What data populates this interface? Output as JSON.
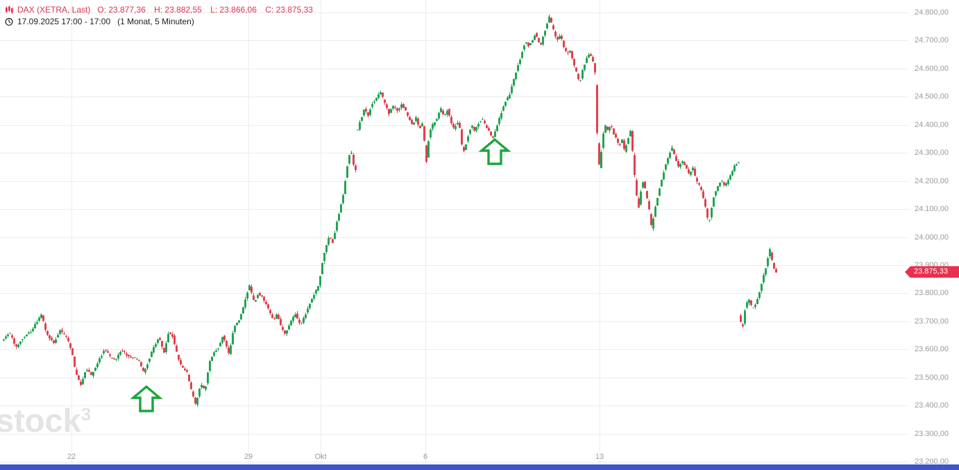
{
  "header": {
    "symbol": "DAX (XETRA, Last)",
    "ohlc_o": "O: 23.877,36",
    "ohlc_h": "H: 23.882,55",
    "ohlc_l": "L: 23.866,06",
    "ohlc_c": "C: 23.875,33",
    "period": "17.09.2025 17:00 - 17:00",
    "interval": "(1 Monat, 5 Minuten)"
  },
  "watermark": {
    "text": "stock",
    "sup": "3"
  },
  "chart_data": {
    "type": "candlestick",
    "title": "DAX (XETRA, Last)",
    "xlabel": "",
    "ylabel": "",
    "range_label": "1 Monat",
    "interval_label": "5 Minuten",
    "ylim": [
      23200,
      24800
    ],
    "grid": true,
    "open": 23877.36,
    "high": 23882.55,
    "low": 23866.06,
    "close": 23875.33,
    "last_price": {
      "value": 23875.33,
      "label": "23.875,33"
    },
    "y_ticks": [
      {
        "value": 24800,
        "label": "24.800,00"
      },
      {
        "value": 24700,
        "label": "24.700,00"
      },
      {
        "value": 24600,
        "label": "24.600,00"
      },
      {
        "value": 24500,
        "label": "24.500,00"
      },
      {
        "value": 24400,
        "label": "24.400,00"
      },
      {
        "value": 24300,
        "label": "24.300,00"
      },
      {
        "value": 24200,
        "label": "24.200,00"
      },
      {
        "value": 24100,
        "label": "24.100,00"
      },
      {
        "value": 24000,
        "label": "24.000,00"
      },
      {
        "value": 23900,
        "label": "23.900,00"
      },
      {
        "value": 23800,
        "label": "23.800,00"
      },
      {
        "value": 23700,
        "label": "23.700,00"
      },
      {
        "value": 23600,
        "label": "23.600,00"
      },
      {
        "value": 23500,
        "label": "23.500,00"
      },
      {
        "value": 23400,
        "label": "23.400,00"
      },
      {
        "value": 23300,
        "label": "23.300,00"
      },
      {
        "value": 23200,
        "label": "23.200,00"
      }
    ],
    "x_ticks": [
      {
        "label": "22",
        "x": 103
      },
      {
        "label": "29",
        "x": 358
      },
      {
        "label": "Okt",
        "x": 462
      },
      {
        "label": "6",
        "x": 613
      },
      {
        "label": "13",
        "x": 864
      }
    ],
    "colors": {
      "up": "#22a453",
      "down": "#e0414e",
      "grid": "#ececec",
      "axis_text": "#9a9a9a",
      "last_price_bg": "#e9304e",
      "scrollbar": "#3e55cb",
      "arrow": "#1ba53a",
      "header_red": "#e0304c"
    },
    "annotations": {
      "arrows_up": [
        {
          "x": 211,
          "y_tip": 556
        },
        {
          "x": 713,
          "y_tip": 200
        }
      ]
    },
    "gaps": [
      514.5,
      1065.5
    ],
    "price_path": [
      [
        5,
        23630
      ],
      [
        14,
        23662
      ],
      [
        24,
        23608
      ],
      [
        34,
        23640
      ],
      [
        47,
        23668
      ],
      [
        60,
        23725
      ],
      [
        68,
        23655
      ],
      [
        78,
        23622
      ],
      [
        88,
        23668
      ],
      [
        97,
        23640
      ],
      [
        104,
        23598
      ],
      [
        109,
        23528
      ],
      [
        117,
        23472
      ],
      [
        125,
        23532
      ],
      [
        133,
        23505
      ],
      [
        143,
        23562
      ],
      [
        152,
        23600
      ],
      [
        160,
        23572
      ],
      [
        168,
        23562
      ],
      [
        176,
        23600
      ],
      [
        185,
        23575
      ],
      [
        193,
        23572
      ],
      [
        201,
        23558
      ],
      [
        208,
        23518
      ],
      [
        215,
        23560
      ],
      [
        223,
        23612
      ],
      [
        230,
        23642
      ],
      [
        237,
        23585
      ],
      [
        244,
        23662
      ],
      [
        250,
        23645
      ],
      [
        257,
        23570
      ],
      [
        264,
        23532
      ],
      [
        270,
        23520
      ],
      [
        277,
        23448
      ],
      [
        283,
        23398
      ],
      [
        290,
        23480
      ],
      [
        296,
        23452
      ],
      [
        303,
        23556
      ],
      [
        310,
        23590
      ],
      [
        317,
        23612
      ],
      [
        322,
        23648
      ],
      [
        331,
        23582
      ],
      [
        338,
        23680
      ],
      [
        345,
        23702
      ],
      [
        352,
        23755
      ],
      [
        360,
        23832
      ],
      [
        367,
        23765
      ],
      [
        373,
        23800
      ],
      [
        380,
        23782
      ],
      [
        388,
        23740
      ],
      [
        395,
        23700
      ],
      [
        400,
        23726
      ],
      [
        406,
        23682
      ],
      [
        412,
        23655
      ],
      [
        420,
        23700
      ],
      [
        427,
        23726
      ],
      [
        434,
        23682
      ],
      [
        440,
        23720
      ],
      [
        447,
        23762
      ],
      [
        454,
        23800
      ],
      [
        460,
        23826
      ],
      [
        465,
        23905
      ],
      [
        470,
        23962
      ],
      [
        475,
        24002
      ],
      [
        480,
        23980
      ],
      [
        486,
        24052
      ],
      [
        491,
        24100
      ],
      [
        496,
        24156
      ],
      [
        501,
        24250
      ],
      [
        506,
        24312
      ],
      [
        511,
        24252
      ],
      [
        513,
        24240
      ],
      [
        516,
        24380
      ],
      [
        521,
        24422
      ],
      [
        526,
        24456
      ],
      [
        531,
        24430
      ],
      [
        536,
        24470
      ],
      [
        545,
        24500
      ],
      [
        549,
        24520
      ],
      [
        556,
        24470
      ],
      [
        561,
        24440
      ],
      [
        566,
        24466
      ],
      [
        574,
        24450
      ],
      [
        580,
        24476
      ],
      [
        589,
        24430
      ],
      [
        595,
        24400
      ],
      [
        600,
        24426
      ],
      [
        605,
        24386
      ],
      [
        609,
        24406
      ],
      [
        612,
        24350
      ],
      [
        615,
        24262
      ],
      [
        620,
        24380
      ],
      [
        626,
        24406
      ],
      [
        631,
        24426
      ],
      [
        636,
        24456
      ],
      [
        641,
        24430
      ],
      [
        646,
        24456
      ],
      [
        651,
        24406
      ],
      [
        656,
        24380
      ],
      [
        659,
        24420
      ],
      [
        664,
        24380
      ],
      [
        668,
        24292
      ],
      [
        674,
        24350
      ],
      [
        680,
        24400
      ],
      [
        685,
        24380
      ],
      [
        690,
        24406
      ],
      [
        695,
        24422
      ],
      [
        700,
        24400
      ],
      [
        705,
        24380
      ],
      [
        711,
        24350
      ],
      [
        718,
        24406
      ],
      [
        724,
        24450
      ],
      [
        730,
        24486
      ],
      [
        735,
        24506
      ],
      [
        740,
        24550
      ],
      [
        746,
        24600
      ],
      [
        752,
        24650
      ],
      [
        758,
        24700
      ],
      [
        763,
        24680
      ],
      [
        768,
        24700
      ],
      [
        772,
        24726
      ],
      [
        776,
        24700
      ],
      [
        780,
        24682
      ],
      [
        785,
        24726
      ],
      [
        792,
        24786
      ],
      [
        798,
        24740
      ],
      [
        803,
        24700
      ],
      [
        808,
        24720
      ],
      [
        813,
        24680
      ],
      [
        818,
        24650
      ],
      [
        822,
        24670
      ],
      [
        827,
        24620
      ],
      [
        832,
        24580
      ],
      [
        836,
        24545
      ],
      [
        841,
        24600
      ],
      [
        846,
        24640
      ],
      [
        851,
        24652
      ],
      [
        855,
        24625
      ],
      [
        858,
        24600
      ],
      [
        860,
        24450
      ],
      [
        862,
        24320
      ],
      [
        865,
        24238
      ],
      [
        869,
        24350
      ],
      [
        873,
        24400
      ],
      [
        877,
        24380
      ],
      [
        881,
        24400
      ],
      [
        885,
        24370
      ],
      [
        889,
        24350
      ],
      [
        893,
        24320
      ],
      [
        897,
        24350
      ],
      [
        901,
        24305
      ],
      [
        906,
        24350
      ],
      [
        910,
        24382
      ],
      [
        914,
        24250
      ],
      [
        918,
        24150
      ],
      [
        921,
        24100
      ],
      [
        925,
        24180
      ],
      [
        928,
        24200
      ],
      [
        932,
        24150
      ],
      [
        936,
        24100
      ],
      [
        940,
        24030
      ],
      [
        944,
        24090
      ],
      [
        949,
        24150
      ],
      [
        954,
        24200
      ],
      [
        959,
        24250
      ],
      [
        964,
        24286
      ],
      [
        969,
        24318
      ],
      [
        974,
        24280
      ],
      [
        979,
        24250
      ],
      [
        984,
        24270
      ],
      [
        989,
        24250
      ],
      [
        994,
        24220
      ],
      [
        999,
        24250
      ],
      [
        1004,
        24200
      ],
      [
        1009,
        24180
      ],
      [
        1014,
        24145
      ],
      [
        1018,
        24100
      ],
      [
        1022,
        24045
      ],
      [
        1026,
        24100
      ],
      [
        1030,
        24150
      ],
      [
        1035,
        24180
      ],
      [
        1040,
        24200
      ],
      [
        1045,
        24180
      ],
      [
        1050,
        24200
      ],
      [
        1055,
        24226
      ],
      [
        1060,
        24256
      ],
      [
        1064,
        24266
      ],
      [
        1067,
        23720
      ],
      [
        1070,
        23665
      ],
      [
        1075,
        23750
      ],
      [
        1080,
        23782
      ],
      [
        1085,
        23740
      ],
      [
        1090,
        23762
      ],
      [
        1095,
        23800
      ],
      [
        1100,
        23850
      ],
      [
        1105,
        23900
      ],
      [
        1110,
        23956
      ],
      [
        1114,
        23905
      ],
      [
        1118,
        23876
      ]
    ],
    "calibration": {
      "y_at_max": 18,
      "y_at_min": 665,
      "x_start": 5,
      "x_end": 1118,
      "candle_step": 3,
      "plot_right": 1310,
      "plot_bottom": 668
    }
  }
}
